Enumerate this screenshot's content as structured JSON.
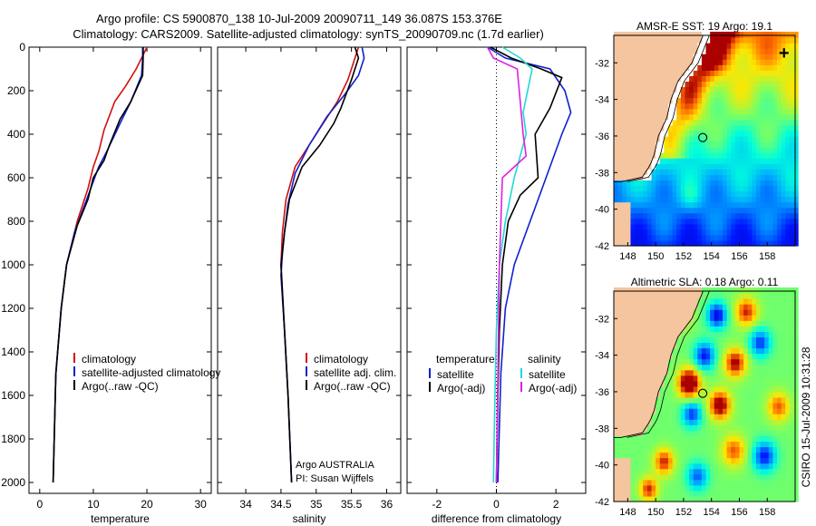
{
  "header": {
    "line1": "Argo profile: CS 5900870_138 10-Jul-2009 20090711_149 36.087S 153.376E",
    "line2": "Climatology: CARS2009. Satellite-adjusted climatology: synTS_20090709.nc (1.7d earlier)"
  },
  "side_label": "CSIRO 15-Jul-2009 10:31:28",
  "credit": {
    "line1": "Argo AUSTRALIA",
    "line2": "PI: Susan Wijffels"
  },
  "colors": {
    "clim": "#d01010",
    "sat": "#1020d0",
    "argo": "#000000",
    "sal_sat": "#20d8d8",
    "sal_argo": "#e020e0",
    "land": "#f5c59f"
  },
  "chart_data": [
    {
      "type": "line",
      "id": "temperature",
      "xlabel": "temperature",
      "ylabel": "",
      "xlim": [
        -2,
        32
      ],
      "ylim": [
        2050,
        0
      ],
      "y_inverted": true,
      "xticks": [
        0,
        10,
        20,
        30
      ],
      "yticks": [
        0,
        200,
        400,
        600,
        800,
        1000,
        1200,
        1400,
        1600,
        1800,
        2000
      ],
      "series": [
        {
          "name": "climatology",
          "color": "clim",
          "x": [
            20,
            19,
            18,
            16,
            14,
            12,
            11,
            10,
            9,
            7,
            5,
            4,
            3,
            2.5
          ],
          "y": [
            0,
            50,
            100,
            180,
            250,
            380,
            480,
            550,
            650,
            800,
            1000,
            1200,
            1500,
            2000
          ]
        },
        {
          "name": "satellite-adjusted climatology",
          "color": "sat",
          "x": [
            19.2,
            19.2,
            19,
            17,
            15,
            12.5,
            11,
            9.5,
            8,
            6.5,
            5,
            4,
            3,
            2.5
          ],
          "y": [
            0,
            50,
            130,
            250,
            350,
            480,
            550,
            650,
            750,
            850,
            1000,
            1200,
            1500,
            2000
          ]
        },
        {
          "name": "Argo(..raw -QC)",
          "color": "argo",
          "x": [
            19.3,
            19.3,
            19.2,
            17,
            15,
            13,
            12,
            10,
            9,
            7,
            5,
            4,
            3,
            2.5
          ],
          "y": [
            0,
            50,
            130,
            250,
            330,
            450,
            520,
            600,
            700,
            820,
            1000,
            1200,
            1500,
            2000
          ]
        }
      ],
      "legend": {
        "items": [
          "climatology",
          "satellite-adjusted climatology",
          "Argo(..raw -QC)"
        ]
      }
    },
    {
      "type": "line",
      "id": "salinity",
      "xlabel": "salinity",
      "ylabel": "",
      "xlim": [
        33.6,
        36.2
      ],
      "ylim": [
        2050,
        0
      ],
      "y_inverted": true,
      "xticks": [
        34,
        34.5,
        35,
        35.5,
        36
      ],
      "series": [
        {
          "name": "climatology",
          "color": "clim",
          "x": [
            35.6,
            35.55,
            35.45,
            35.3,
            35.1,
            34.9,
            34.7,
            34.57,
            34.52,
            34.5,
            34.55,
            34.6,
            34.65
          ],
          "y": [
            0,
            50,
            150,
            250,
            350,
            450,
            550,
            700,
            850,
            1000,
            1300,
            1600,
            2000
          ]
        },
        {
          "name": "satellite adj. clim.",
          "color": "sat",
          "x": [
            35.65,
            35.68,
            35.6,
            35.4,
            35.15,
            34.9,
            34.7,
            34.6,
            34.55,
            34.52,
            34.5,
            34.55,
            34.6,
            34.65
          ],
          "y": [
            0,
            50,
            130,
            220,
            320,
            450,
            580,
            720,
            850,
            950,
            1050,
            1300,
            1600,
            2000
          ]
        },
        {
          "name": "Argo(..raw -QC)",
          "color": "argo",
          "x": [
            35.55,
            35.6,
            35.5,
            35.35,
            35.25,
            35.05,
            34.8,
            34.62,
            34.55,
            34.5,
            34.55,
            34.6,
            34.65
          ],
          "y": [
            0,
            50,
            150,
            280,
            350,
            450,
            550,
            700,
            850,
            1000,
            1300,
            1600,
            2000
          ]
        }
      ],
      "legend": {
        "items": [
          "climatology",
          "satellite adj. clim.",
          "Argo(..raw -QC)"
        ]
      }
    },
    {
      "type": "line",
      "id": "difference",
      "xlabel": "difference from climatology",
      "ylabel": "",
      "xlim": [
        -3,
        3
      ],
      "ylim": [
        2050,
        0
      ],
      "y_inverted": true,
      "xticks": [
        -2,
        0,
        2
      ],
      "series": [
        {
          "name": "temperature satellite",
          "color": "sat",
          "x": [
            -0.3,
            0.3,
            1.8,
            2.3,
            2.5,
            2.2,
            1.8,
            1.4,
            1.0,
            0.6,
            0.3,
            0.15,
            0.05
          ],
          "y": [
            0,
            50,
            100,
            200,
            300,
            400,
            550,
            700,
            850,
            1000,
            1200,
            1500,
            2000
          ]
        },
        {
          "name": "temperature Argo(-adj)",
          "color": "argo",
          "x": [
            -0.2,
            0.5,
            1.5,
            2.2,
            1.8,
            1.3,
            1.4,
            0.8,
            0.4,
            0.2,
            0.1,
            0.05,
            0.0
          ],
          "y": [
            0,
            50,
            100,
            140,
            280,
            400,
            600,
            680,
            800,
            1000,
            1300,
            1600,
            2000
          ]
        },
        {
          "name": "salinity satellite",
          "color": "sal_sat",
          "x": [
            0.2,
            0.8,
            1.2,
            0.9,
            1.0,
            0.6,
            0.3,
            0.1,
            0.0,
            -0.05,
            -0.1
          ],
          "y": [
            0,
            50,
            100,
            300,
            400,
            600,
            800,
            1000,
            1300,
            1600,
            2000
          ]
        },
        {
          "name": "salinity Argo(-adj)",
          "color": "sal_argo",
          "x": [
            -0.3,
            -0.1,
            0.7,
            0.8,
            0.9,
            1.0,
            0.6,
            0.2,
            0.1,
            0.0
          ],
          "y": [
            0,
            50,
            100,
            250,
            400,
            500,
            550,
            600,
            1000,
            2000
          ]
        }
      ],
      "legend": {
        "temperature_title": "temperature",
        "salinity_title": "salinity",
        "items": [
          "satellite",
          "Argo(-adj)",
          "satellite",
          "Argo(-adj)"
        ]
      }
    },
    {
      "type": "heatmap",
      "id": "sst_map",
      "title": "AMSR-E SST: 19 Argo: 19.1",
      "xticks": [
        148,
        150,
        152,
        154,
        156,
        158
      ],
      "yticks": [
        -32,
        -34,
        -36,
        -38,
        -40,
        -42
      ],
      "xlim": [
        147,
        160
      ],
      "ylim": [
        -42,
        -30.5
      ],
      "argo_position": [
        153.376,
        -36.087
      ]
    },
    {
      "type": "heatmap",
      "id": "sla_map",
      "title": "Altimetric SLA: 0.18 Argo: 0.11",
      "xticks": [
        148,
        150,
        152,
        154,
        156,
        158
      ],
      "yticks": [
        -32,
        -34,
        -36,
        -38,
        -40,
        -42
      ],
      "xlim": [
        147,
        160
      ],
      "ylim": [
        -42,
        -30.5
      ],
      "argo_position": [
        153.376,
        -36.087
      ]
    }
  ]
}
